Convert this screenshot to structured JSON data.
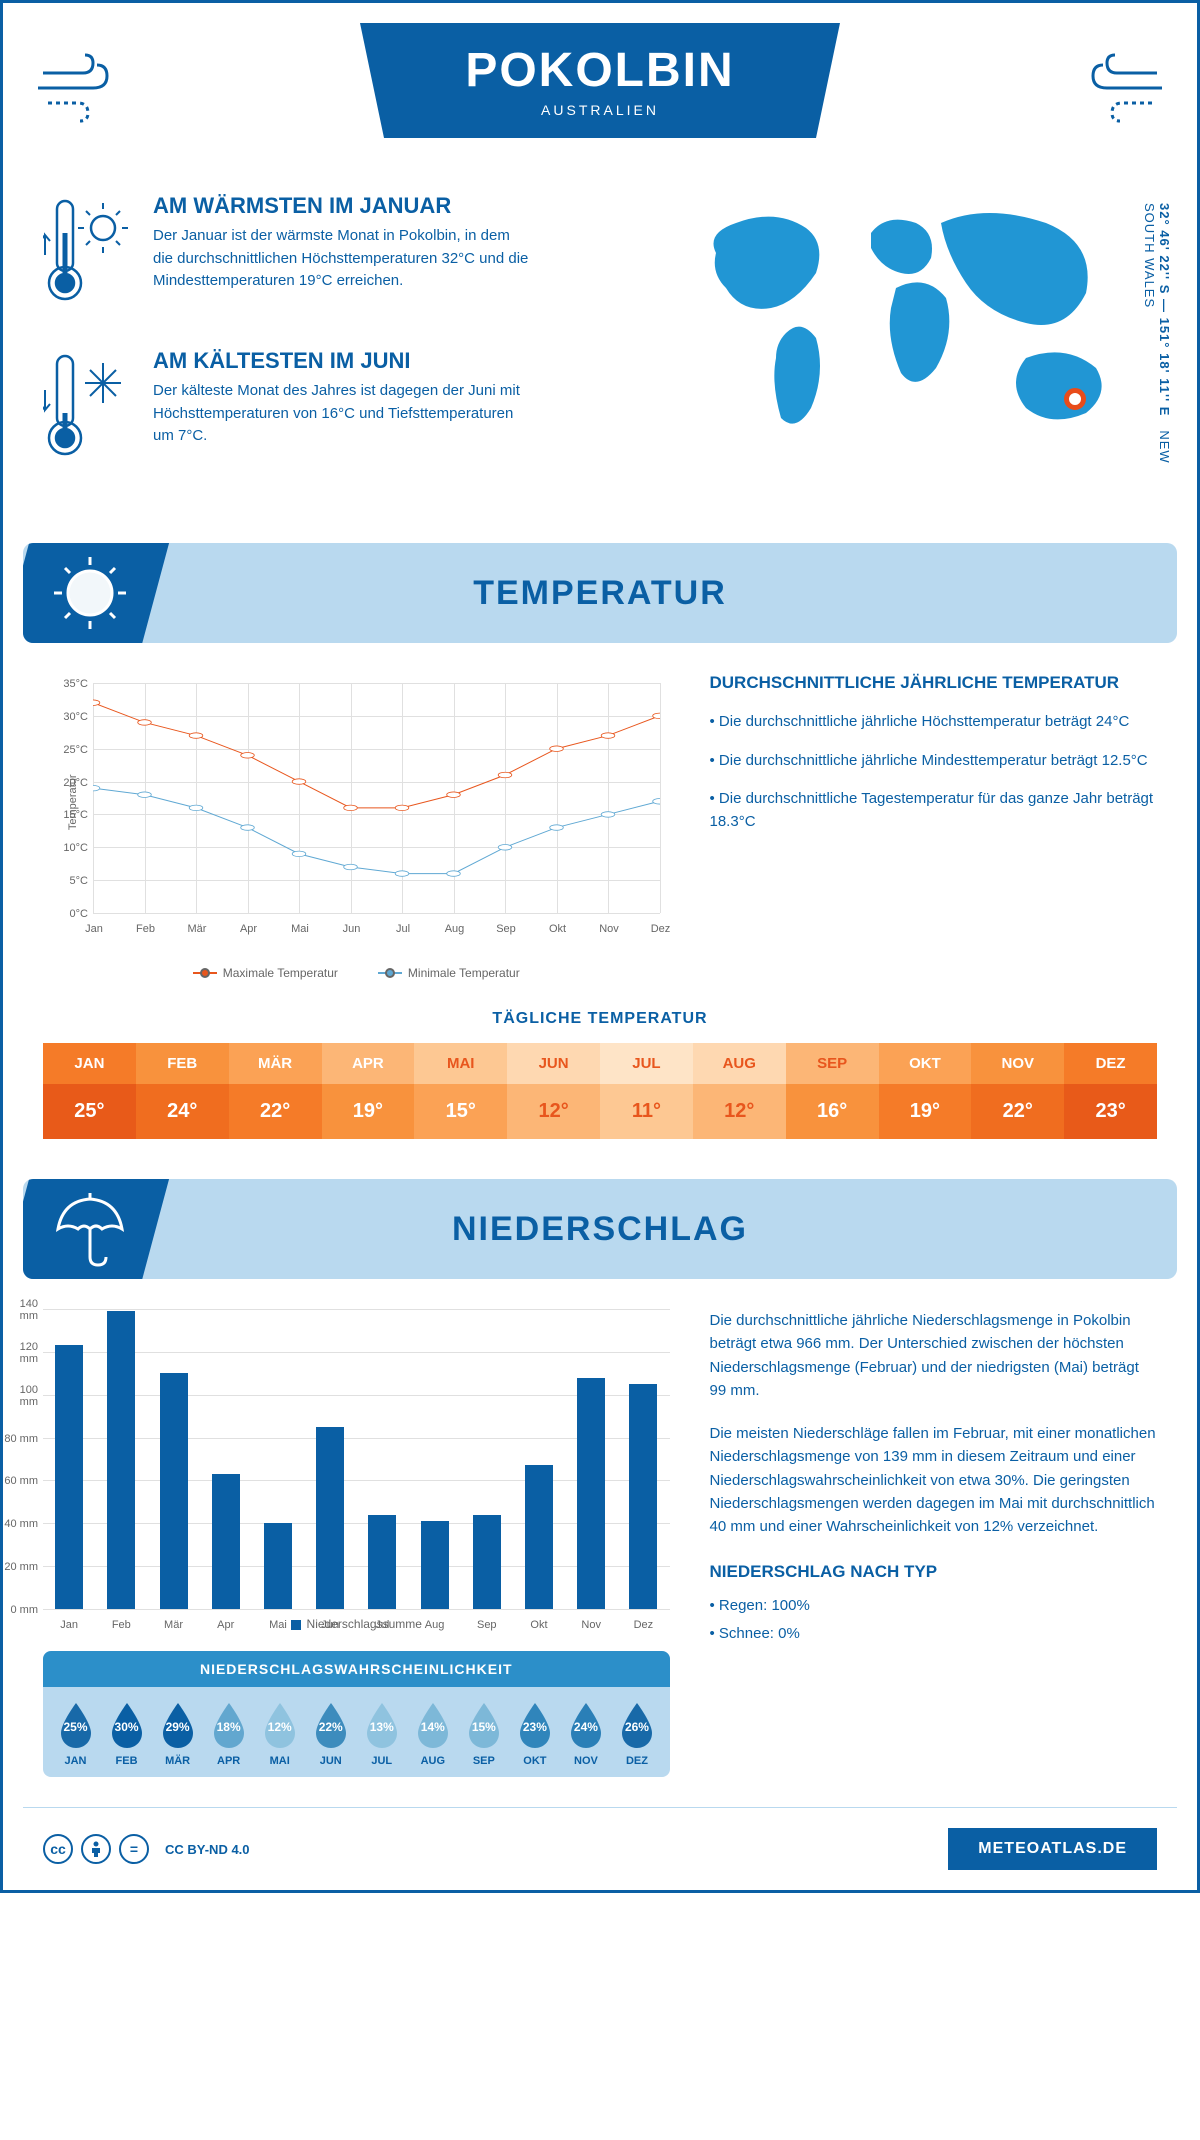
{
  "header": {
    "title": "POKOLBIN",
    "subtitle": "AUSTRALIEN"
  },
  "coords": {
    "line": "32° 46' 22'' S — 151° 18' 11'' E",
    "region": "NEW SOUTH WALES"
  },
  "warmest": {
    "title": "AM WÄRMSTEN IM JANUAR",
    "text": "Der Januar ist der wärmste Monat in Pokolbin, in dem die durchschnittlichen Höchsttemperaturen 32°C und die Mindesttemperaturen 19°C erreichen."
  },
  "coldest": {
    "title": "AM KÄLTESTEN IM JUNI",
    "text": "Der kälteste Monat des Jahres ist dagegen der Juni mit Höchsttemperaturen von 16°C und Tiefsttemperaturen um 7°C."
  },
  "sections": {
    "temp": "TEMPERATUR",
    "precip": "NIEDERSCHLAG"
  },
  "tempChart": {
    "type": "line",
    "yTitle": "Temperatur",
    "ylim": [
      0,
      35
    ],
    "ytick_step": 5,
    "months": [
      "Jan",
      "Feb",
      "Mär",
      "Apr",
      "Mai",
      "Jun",
      "Jul",
      "Aug",
      "Sep",
      "Okt",
      "Nov",
      "Dez"
    ],
    "series": [
      {
        "name": "Maximale Temperatur",
        "color": "#e8561d",
        "values": [
          32,
          29,
          27,
          24,
          20,
          16,
          16,
          18,
          21,
          25,
          27,
          30
        ]
      },
      {
        "name": "Minimale Temperatur",
        "color": "#5fa8d3",
        "values": [
          19,
          18,
          16,
          13,
          9,
          7,
          6,
          6,
          10,
          13,
          15,
          17
        ]
      }
    ],
    "grid_color": "#e0e0e0",
    "background_color": "#ffffff"
  },
  "tempInfo": {
    "title": "DURCHSCHNITTLICHE JÄHRLICHE TEMPERATUR",
    "bullets": [
      "• Die durchschnittliche jährliche Höchsttemperatur beträgt 24°C",
      "• Die durchschnittliche jährliche Mindesttemperatur beträgt 12.5°C",
      "• Die durchschnittliche Tagestemperatur für das ganze Jahr beträgt 18.3°C"
    ]
  },
  "dailyTemp": {
    "title": "TÄGLICHE TEMPERATUR",
    "months": [
      "JAN",
      "FEB",
      "MÄR",
      "APR",
      "MAI",
      "JUN",
      "JUL",
      "AUG",
      "SEP",
      "OKT",
      "NOV",
      "DEZ"
    ],
    "values": [
      "25°",
      "24°",
      "22°",
      "19°",
      "15°",
      "12°",
      "11°",
      "12°",
      "16°",
      "19°",
      "22°",
      "23°"
    ],
    "header_colors": [
      "#f57b28",
      "#f8923d",
      "#fba255",
      "#fcb676",
      "#fdc893",
      "#fed8b1",
      "#fee4c7",
      "#fed8b1",
      "#fcb676",
      "#fba255",
      "#f8923d",
      "#f57b28"
    ],
    "value_colors": [
      "#e85a19",
      "#f06d1f",
      "#f57b28",
      "#f8923d",
      "#fba255",
      "#fcb676",
      "#fdc893",
      "#fcb676",
      "#f8923d",
      "#f57b28",
      "#f06d1f",
      "#e85a19"
    ],
    "header_text_colors": [
      "#ffffff",
      "#ffffff",
      "#ffffff",
      "#ffffff",
      "#e8561d",
      "#e8561d",
      "#e8561d",
      "#e8561d",
      "#e8561d",
      "#ffffff",
      "#ffffff",
      "#ffffff"
    ],
    "value_text_colors": [
      "#ffffff",
      "#ffffff",
      "#ffffff",
      "#ffffff",
      "#ffffff",
      "#e8561d",
      "#e8561d",
      "#e8561d",
      "#ffffff",
      "#ffffff",
      "#ffffff",
      "#ffffff"
    ]
  },
  "precipChart": {
    "type": "bar",
    "yTitle": "Niederschlag",
    "ylim": [
      0,
      140
    ],
    "ytick_step": 20,
    "months": [
      "Jan",
      "Feb",
      "Mär",
      "Apr",
      "Mai",
      "Jun",
      "Jul",
      "Aug",
      "Sep",
      "Okt",
      "Nov",
      "Dez"
    ],
    "values": [
      123,
      139,
      110,
      63,
      40,
      85,
      44,
      41,
      44,
      67,
      108,
      105
    ],
    "bar_color": "#0a5fa4",
    "label": "Niederschlagssumme"
  },
  "precipProb": {
    "title": "NIEDERSCHLAGSWAHRSCHEINLICHKEIT",
    "months": [
      "JAN",
      "FEB",
      "MÄR",
      "APR",
      "MAI",
      "JUN",
      "JUL",
      "AUG",
      "SEP",
      "OKT",
      "NOV",
      "DEZ"
    ],
    "values": [
      "25%",
      "30%",
      "29%",
      "18%",
      "12%",
      "22%",
      "13%",
      "14%",
      "15%",
      "23%",
      "24%",
      "26%"
    ],
    "drop_colors": [
      "#1869a8",
      "#0a5fa4",
      "#0a5fa4",
      "#62a7cf",
      "#8fc3df",
      "#3d8cbd",
      "#8fc3df",
      "#7db8d8",
      "#7db8d8",
      "#3085bb",
      "#2a7fb7",
      "#1869a8"
    ]
  },
  "precipText": {
    "p1": "Die durchschnittliche jährliche Niederschlagsmenge in Pokolbin beträgt etwa 966 mm. Der Unterschied zwischen der höchsten Niederschlagsmenge (Februar) und der niedrigsten (Mai) beträgt 99 mm.",
    "p2": "Die meisten Niederschläge fallen im Februar, mit einer monatlichen Niederschlagsmenge von 139 mm in diesem Zeitraum und einer Niederschlagswahrscheinlichkeit von etwa 30%. Die geringsten Niederschlagsmengen werden dagegen im Mai mit durchschnittlich 40 mm und einer Wahrscheinlichkeit von 12% verzeichnet.",
    "typeTitle": "NIEDERSCHLAG NACH TYP",
    "types": [
      "• Regen: 100%",
      "• Schnee: 0%"
    ]
  },
  "footer": {
    "license": "CC BY-ND 4.0",
    "site": "METEOATLAS.DE"
  },
  "colors": {
    "primary": "#0a5fa4",
    "light_blue": "#b9d9ef",
    "accent_blue": "#2c8fc9"
  }
}
